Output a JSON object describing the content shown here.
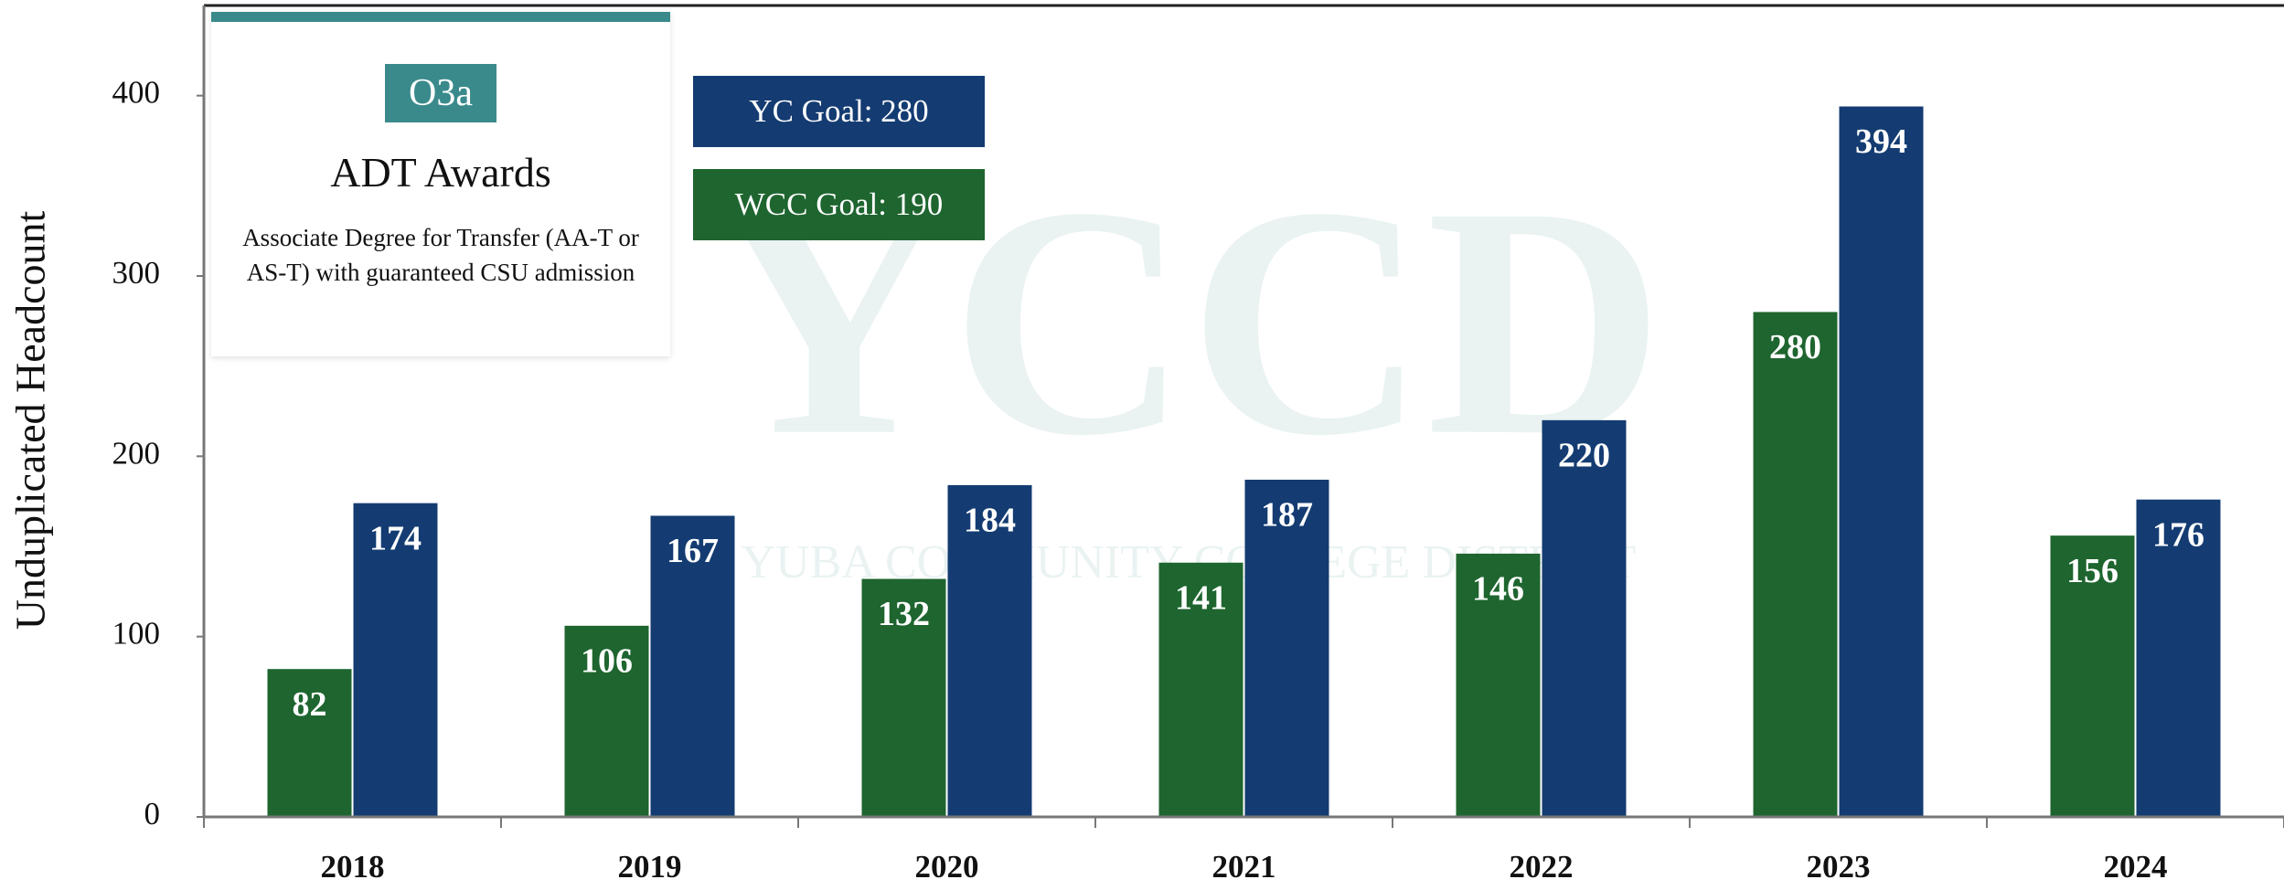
{
  "chart_data": {
    "type": "bar",
    "y_label": "Unduplicated Headcount",
    "categories": [
      "2018",
      "2019",
      "2020",
      "2021",
      "2022",
      "2023",
      "2024"
    ],
    "series": [
      {
        "color": "#1e652f",
        "values": [
          82,
          106,
          132,
          141,
          146,
          280,
          156
        ]
      },
      {
        "color": "#143c72",
        "values": [
          174,
          167,
          184,
          187,
          220,
          394,
          176
        ]
      }
    ],
    "ylim": [
      0,
      450
    ],
    "yticks": [
      0,
      100,
      200,
      300,
      400
    ],
    "watermark": [
      "YCCD",
      "YUBA COMMUNITY COLLEGE DISTRICT"
    ],
    "panel": {
      "badge": "O3a",
      "title": "ADT Awards",
      "description": "Associate Degree for Transfer (AA-T or AS-T) with guaranteed CSU admission"
    },
    "goals": [
      {
        "text": "YC Goal: 280",
        "color": "#143c72"
      },
      {
        "text": "WCC Goal: 190",
        "color": "#1e652f"
      }
    ]
  }
}
